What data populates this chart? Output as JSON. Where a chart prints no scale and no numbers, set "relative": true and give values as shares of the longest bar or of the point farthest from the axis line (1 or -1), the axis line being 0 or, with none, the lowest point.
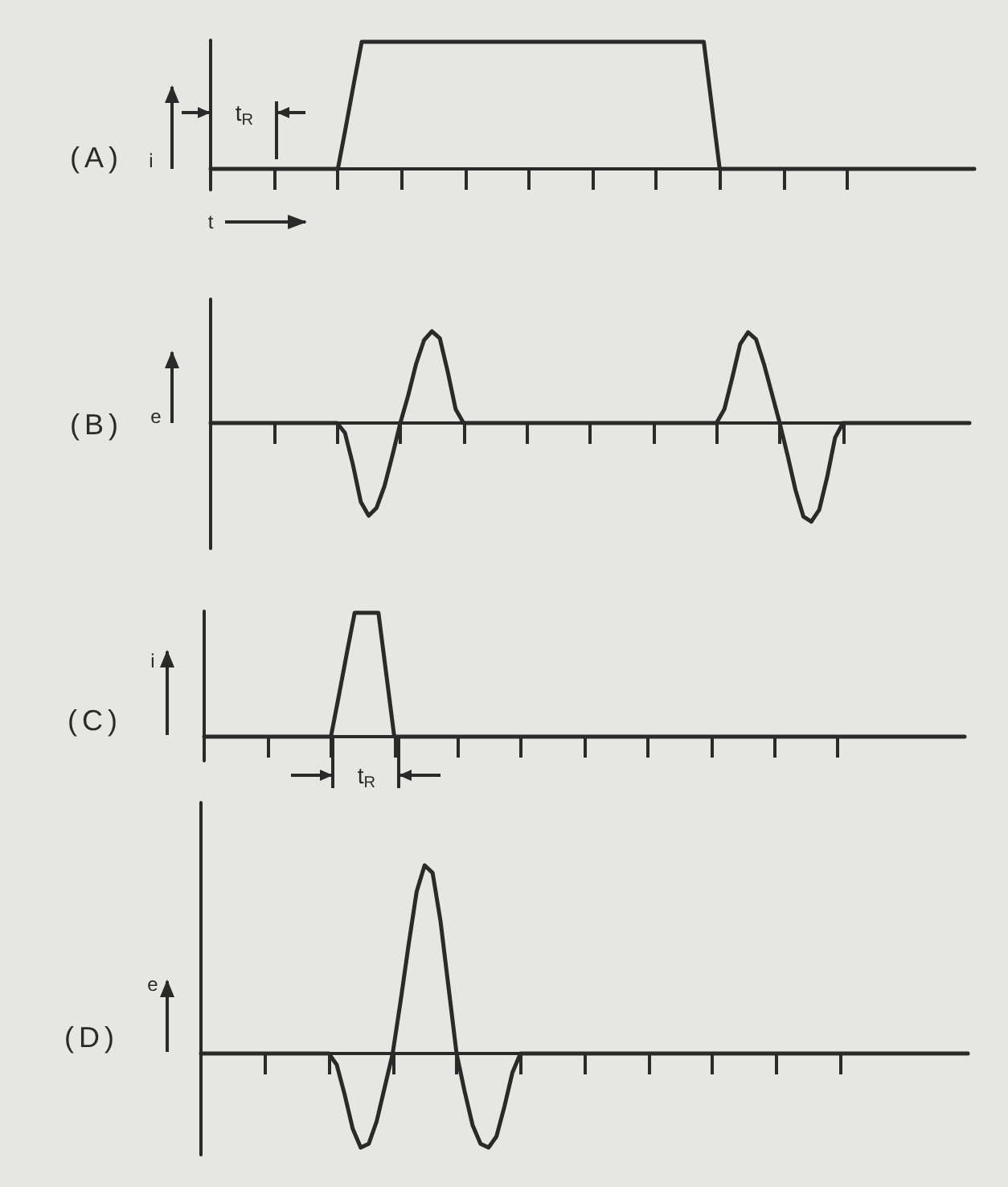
{
  "chart_data": [
    {
      "type": "line",
      "title": "(A)",
      "ylabel": "i",
      "xlabel": "t",
      "annotations": [
        "t$_{R}$"
      ],
      "relative": true,
      "color": "#2a2a2a",
      "categories": [
        null,
        null,
        null,
        null,
        null,
        null,
        null,
        null,
        null,
        null,
        null,
        null,
        null,
        null,
        null,
        null,
        null,
        null,
        null,
        null,
        null,
        null,
        null,
        null,
        null,
        null,
        null,
        null,
        null,
        null,
        null,
        null,
        null,
        null,
        null,
        null,
        null,
        null,
        null,
        null,
        null,
        null,
        null,
        null,
        null,
        null,
        null,
        null,
        null,
        null,
        null,
        null,
        null,
        null,
        null,
        null,
        null,
        null,
        null,
        null,
        null,
        null,
        null,
        null,
        null,
        null,
        null,
        null,
        null,
        null,
        null,
        null,
        null,
        null,
        null,
        null,
        null,
        null,
        null,
        null,
        null,
        null,
        null,
        null,
        null,
        null,
        null,
        null,
        null,
        null,
        null,
        null,
        null,
        null,
        null,
        null,
        null
      ],
      "values": [
        0,
        0,
        0,
        0,
        0,
        0,
        0,
        0,
        0,
        0,
        0,
        0,
        0,
        0,
        0,
        0,
        0,
        0.33,
        0.67,
        1,
        1,
        1,
        1,
        1,
        1,
        1,
        1,
        1,
        1,
        1,
        1,
        1,
        1,
        1,
        1,
        1,
        1,
        1,
        1,
        1,
        1,
        1,
        1,
        1,
        1,
        1,
        1,
        1,
        1,
        1,
        1,
        1,
        1,
        1,
        1,
        1,
        1,
        1,
        1,
        1,
        1,
        1,
        1,
        0.5,
        0,
        0,
        0,
        0,
        0,
        0,
        0,
        0,
        0,
        0,
        0,
        0,
        0,
        0,
        0,
        0,
        0,
        0,
        0,
        0,
        0,
        0,
        0,
        0,
        0,
        0,
        0,
        0,
        0,
        0,
        0,
        0,
        0
      ]
    },
    {
      "type": "line",
      "title": "(B)",
      "ylabel": "e",
      "relative": true,
      "color": "#2a2a2a",
      "categories": [
        null,
        null,
        null,
        null,
        null,
        null,
        null,
        null,
        null,
        null,
        null,
        null,
        null,
        null,
        null,
        null,
        null,
        null,
        null,
        null,
        null,
        null,
        null,
        null,
        null,
        null,
        null,
        null,
        null,
        null,
        null,
        null,
        null,
        null,
        null,
        null,
        null,
        null,
        null,
        null,
        null,
        null,
        null,
        null,
        null,
        null,
        null,
        null,
        null,
        null,
        null,
        null,
        null,
        null,
        null,
        null,
        null,
        null,
        null,
        null,
        null,
        null,
        null,
        null,
        null,
        null,
        null,
        null,
        null,
        null,
        null,
        null,
        null,
        null,
        null,
        null,
        null,
        null,
        null,
        null,
        null,
        null,
        null,
        null,
        null,
        null,
        null,
        null,
        null,
        null,
        null,
        null,
        null,
        null,
        null,
        null,
        null
      ],
      "values": [
        0,
        0,
        0,
        0,
        0,
        0,
        0,
        0,
        0,
        0,
        0,
        0,
        0,
        0,
        0,
        0,
        0,
        -0.1,
        -0.42,
        -0.8,
        -0.94,
        -0.86,
        -0.64,
        -0.33,
        0,
        0.28,
        0.6,
        0.84,
        0.93,
        0.86,
        0.52,
        0.14,
        0,
        0,
        0,
        0,
        0,
        0,
        0,
        0,
        0,
        0,
        0,
        0,
        0,
        0,
        0,
        0,
        0,
        0,
        0,
        0,
        0,
        0,
        0,
        0,
        0,
        0,
        0,
        0,
        0,
        0,
        0,
        0,
        0,
        0.14,
        0.46,
        0.8,
        0.92,
        0.85,
        0.6,
        0.3,
        0,
        -0.33,
        -0.68,
        -0.95,
        -1,
        -0.88,
        -0.55,
        -0.15,
        0,
        0,
        0,
        0,
        0,
        0,
        0,
        0,
        0,
        0,
        0,
        0,
        0,
        0,
        0,
        0,
        0
      ]
    },
    {
      "type": "line",
      "title": "(C)",
      "ylabel": "i",
      "annotations": [
        "t$_{R}$"
      ],
      "relative": true,
      "color": "#2a2a2a",
      "categories": [
        null,
        null,
        null,
        null,
        null,
        null,
        null,
        null,
        null,
        null,
        null,
        null,
        null,
        null,
        null,
        null,
        null,
        null,
        null,
        null,
        null,
        null,
        null,
        null,
        null,
        null,
        null,
        null,
        null,
        null,
        null,
        null,
        null,
        null,
        null,
        null,
        null,
        null,
        null,
        null,
        null,
        null,
        null,
        null,
        null,
        null,
        null,
        null,
        null,
        null,
        null,
        null,
        null,
        null,
        null,
        null,
        null,
        null,
        null,
        null,
        null,
        null,
        null,
        null,
        null,
        null,
        null,
        null,
        null,
        null,
        null,
        null,
        null,
        null,
        null,
        null,
        null,
        null,
        null,
        null,
        null,
        null,
        null,
        null,
        null,
        null,
        null,
        null,
        null,
        null,
        null,
        null,
        null,
        null,
        null,
        null,
        null
      ],
      "values": [
        0,
        0,
        0,
        0,
        0,
        0,
        0,
        0,
        0,
        0,
        0,
        0,
        0,
        0,
        0,
        0,
        0,
        0.33,
        0.67,
        1,
        1,
        1,
        1,
        0.5,
        0,
        0,
        0,
        0,
        0,
        0,
        0,
        0,
        0,
        0,
        0,
        0,
        0,
        0,
        0,
        0,
        0,
        0,
        0,
        0,
        0,
        0,
        0,
        0,
        0,
        0,
        0,
        0,
        0,
        0,
        0,
        0,
        0,
        0,
        0,
        0,
        0,
        0,
        0,
        0,
        0,
        0,
        0,
        0,
        0,
        0,
        0,
        0,
        0,
        0,
        0,
        0,
        0,
        0,
        0,
        0,
        0,
        0,
        0,
        0,
        0,
        0,
        0,
        0,
        0,
        0,
        0,
        0,
        0,
        0,
        0,
        0,
        0
      ]
    },
    {
      "type": "line",
      "title": "(D)",
      "ylabel": "e",
      "relative": true,
      "color": "#2a2a2a",
      "categories": [
        null,
        null,
        null,
        null,
        null,
        null,
        null,
        null,
        null,
        null,
        null,
        null,
        null,
        null,
        null,
        null,
        null,
        null,
        null,
        null,
        null,
        null,
        null,
        null,
        null,
        null,
        null,
        null,
        null,
        null,
        null,
        null,
        null,
        null,
        null,
        null,
        null,
        null,
        null,
        null,
        null,
        null,
        null,
        null,
        null,
        null,
        null,
        null,
        null,
        null,
        null,
        null,
        null,
        null,
        null,
        null,
        null,
        null,
        null,
        null,
        null,
        null,
        null,
        null,
        null,
        null,
        null,
        null,
        null,
        null,
        null,
        null,
        null,
        null,
        null,
        null,
        null,
        null,
        null,
        null,
        null,
        null,
        null,
        null,
        null,
        null,
        null,
        null,
        null,
        null,
        null,
        null,
        null,
        null,
        null,
        null,
        null
      ],
      "values": [
        0,
        0,
        0,
        0,
        0,
        0,
        0,
        0,
        0,
        0,
        0,
        0,
        0,
        0,
        0,
        0,
        0,
        -0.06,
        -0.22,
        -0.4,
        -0.5,
        -0.48,
        -0.36,
        -0.18,
        0,
        0.28,
        0.58,
        0.86,
        1,
        0.96,
        0.7,
        0.35,
        0,
        -0.2,
        -0.38,
        -0.48,
        -0.5,
        -0.44,
        -0.28,
        -0.1,
        0,
        0,
        0,
        0,
        0,
        0,
        0,
        0,
        0,
        0,
        0,
        0,
        0,
        0,
        0,
        0,
        0,
        0,
        0,
        0,
        0,
        0,
        0,
        0,
        0,
        0,
        0,
        0,
        0,
        0,
        0,
        0,
        0,
        0,
        0,
        0,
        0,
        0,
        0,
        0,
        0,
        0,
        0,
        0,
        0,
        0,
        0,
        0,
        0,
        0,
        0,
        0,
        0,
        0,
        0,
        0,
        0
      ]
    }
  ]
}
